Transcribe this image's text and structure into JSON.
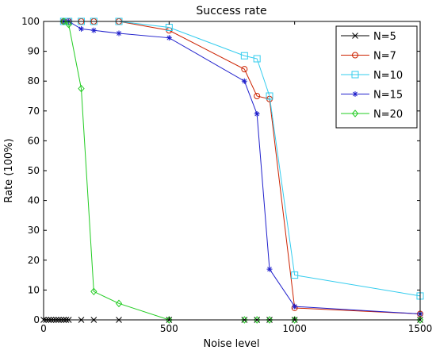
{
  "chart_data": {
    "type": "line",
    "title": "Success rate",
    "xlabel": "Noise level",
    "ylabel": "Rate (100%)",
    "xlim": [
      0,
      1500
    ],
    "ylim": [
      0,
      100
    ],
    "xticks": [
      0,
      500,
      1000,
      1500
    ],
    "yticks": [
      0,
      10,
      20,
      30,
      40,
      50,
      60,
      70,
      80,
      90,
      100
    ],
    "grid": false,
    "legend_position": "top-right",
    "series": [
      {
        "name": "N=5",
        "color": "#000000",
        "marker": "x",
        "x": [
          0,
          10,
          20,
          30,
          40,
          50,
          60,
          70,
          80,
          90,
          100,
          150,
          200,
          300,
          500,
          800,
          850,
          900,
          1000,
          1500
        ],
        "y": [
          0,
          0,
          0,
          0,
          0,
          0,
          0,
          0,
          0,
          0,
          0,
          0,
          0,
          0,
          0,
          0,
          0,
          0,
          0,
          0
        ]
      },
      {
        "name": "N=7",
        "color": "#cc2200",
        "marker": "circle",
        "x": [
          80,
          100,
          150,
          200,
          300,
          500,
          800,
          850,
          900,
          1000,
          1500
        ],
        "y": [
          100,
          100,
          100,
          100,
          100,
          97,
          84,
          75,
          74,
          4,
          2
        ]
      },
      {
        "name": "N=10",
        "color": "#33ccee",
        "marker": "square",
        "x": [
          80,
          100,
          150,
          200,
          300,
          500,
          800,
          850,
          900,
          1000,
          1500
        ],
        "y": [
          100,
          100,
          100,
          100,
          100,
          98,
          88.5,
          87.5,
          75,
          15,
          8
        ]
      },
      {
        "name": "N=15",
        "color": "#2020cc",
        "marker": "asterisk",
        "x": [
          80,
          100,
          150,
          200,
          300,
          500,
          800,
          850,
          900,
          1000,
          1500
        ],
        "y": [
          100,
          100,
          97.5,
          97,
          96,
          94.5,
          80,
          69,
          17,
          4.5,
          2
        ]
      },
      {
        "name": "N=20",
        "color": "#22cc22",
        "marker": "diamond",
        "x": [
          80,
          100,
          150,
          200,
          300,
          500,
          800,
          850,
          900,
          1000,
          1500
        ],
        "y": [
          100,
          99,
          77.5,
          9.5,
          5.5,
          0,
          0,
          0,
          0,
          0,
          0
        ]
      }
    ]
  }
}
